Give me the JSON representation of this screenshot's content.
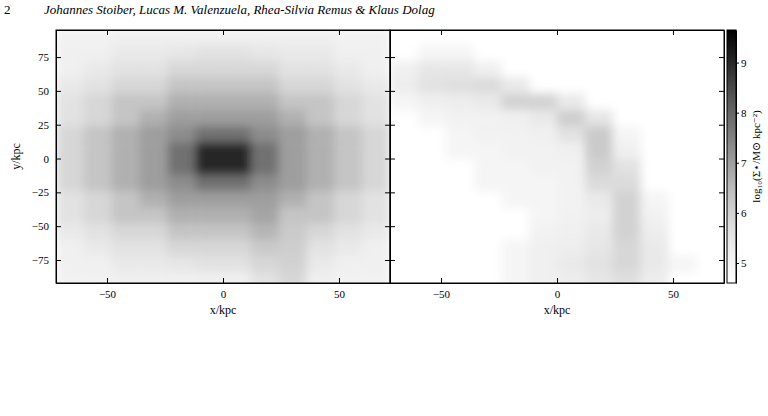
{
  "page_header": {
    "page": "2",
    "authors": "Johannes Stoiber, Lucas M. Valenzuela, Rhea-Silvia Remus & Klaus Dolag"
  },
  "chart_data": [
    {
      "type": "heatmap",
      "x": [
        -66,
        -54,
        -42,
        -30,
        -18,
        -6,
        6,
        18,
        30,
        42,
        54,
        66
      ],
      "y": [
        90,
        78,
        66,
        54,
        42,
        30,
        18,
        6,
        -6,
        -18,
        -30,
        -42,
        -54,
        -66,
        -78,
        -90
      ],
      "z": [
        [
          5.1,
          5.1,
          5.2,
          5.2,
          5.2,
          5.2,
          5.2,
          5.2,
          5.2,
          5.2,
          5.1,
          5.1
        ],
        [
          5.2,
          5.2,
          5.4,
          5.4,
          5.5,
          5.6,
          5.6,
          5.5,
          5.4,
          5.4,
          5.2,
          5.2
        ],
        [
          5.2,
          5.4,
          5.6,
          5.6,
          5.9,
          5.9,
          5.9,
          5.9,
          5.6,
          5.6,
          5.4,
          5.2
        ],
        [
          5.4,
          5.6,
          5.9,
          5.9,
          6.3,
          6.3,
          6.3,
          6.3,
          5.9,
          5.9,
          5.6,
          5.4
        ],
        [
          5.6,
          5.9,
          6.3,
          6.3,
          6.7,
          6.7,
          6.7,
          6.7,
          6.3,
          6.3,
          5.9,
          5.6
        ],
        [
          5.6,
          5.9,
          6.3,
          6.7,
          7.0,
          7.0,
          7.0,
          7.0,
          6.7,
          6.3,
          5.9,
          5.6
        ],
        [
          5.9,
          6.3,
          6.7,
          7.0,
          7.3,
          7.8,
          7.8,
          7.3,
          7.0,
          6.7,
          6.3,
          5.9
        ],
        [
          5.9,
          6.3,
          6.7,
          7.0,
          7.8,
          9.0,
          9.0,
          7.8,
          7.0,
          6.7,
          6.3,
          5.9
        ],
        [
          5.9,
          6.3,
          6.7,
          7.0,
          7.8,
          9.0,
          9.0,
          7.8,
          7.0,
          6.7,
          6.3,
          5.9
        ],
        [
          5.9,
          6.3,
          6.7,
          7.0,
          7.3,
          7.8,
          7.8,
          7.3,
          7.0,
          6.7,
          6.3,
          5.9
        ],
        [
          5.6,
          5.9,
          6.3,
          6.7,
          7.0,
          7.0,
          7.0,
          7.0,
          6.7,
          6.3,
          5.9,
          5.6
        ],
        [
          5.6,
          5.9,
          6.3,
          6.3,
          6.7,
          6.7,
          6.7,
          6.9,
          6.3,
          6.3,
          5.9,
          5.6
        ],
        [
          5.4,
          5.6,
          5.9,
          5.9,
          6.3,
          6.3,
          6.3,
          6.6,
          6.2,
          5.9,
          5.6,
          5.4
        ],
        [
          5.2,
          5.4,
          5.6,
          5.6,
          5.9,
          5.9,
          5.9,
          6.2,
          6.1,
          5.6,
          5.4,
          5.2
        ],
        [
          5.2,
          5.2,
          5.4,
          5.4,
          5.5,
          5.6,
          5.6,
          5.9,
          6.0,
          5.4,
          5.2,
          5.2
        ],
        [
          5.1,
          5.1,
          5.2,
          5.2,
          5.2,
          5.2,
          5.2,
          5.6,
          5.9,
          5.2,
          5.1,
          5.1
        ]
      ],
      "xlim": [
        -72,
        72
      ],
      "ylim": [
        -92,
        95
      ],
      "xticks": [
        {
          "value": -50,
          "label": "−50"
        },
        0,
        50
      ],
      "yticks": [
        {
          "value": -75,
          "label": "−75"
        },
        {
          "value": -50,
          "label": "−50"
        },
        {
          "value": -25,
          "label": "−25"
        },
        0,
        25,
        50,
        75
      ],
      "xlabel": "x/kpc",
      "ylabel": "y/kpc"
    },
    {
      "type": "heatmap",
      "x": [
        -66,
        -54,
        -42,
        -30,
        -18,
        -6,
        6,
        18,
        30,
        42,
        54,
        66
      ],
      "y": [
        90,
        78,
        66,
        54,
        42,
        30,
        18,
        6,
        -6,
        -18,
        -30,
        -42,
        -54,
        -66,
        -78,
        -90
      ],
      "z": [
        [
          null,
          null,
          null,
          null,
          null,
          null,
          null,
          null,
          null,
          null,
          null,
          null
        ],
        [
          null,
          5.0,
          5.0,
          null,
          null,
          null,
          null,
          null,
          null,
          null,
          null,
          null
        ],
        [
          5.2,
          5.5,
          5.5,
          5.2,
          null,
          null,
          null,
          null,
          null,
          null,
          null,
          null
        ],
        [
          5.3,
          5.6,
          5.7,
          5.8,
          5.4,
          null,
          null,
          null,
          null,
          null,
          null,
          null
        ],
        [
          5.0,
          5.2,
          5.3,
          5.4,
          6.0,
          6.0,
          5.4,
          null,
          null,
          null,
          null,
          null
        ],
        [
          null,
          5.0,
          5.1,
          5.1,
          5.2,
          5.4,
          6.1,
          5.5,
          null,
          null,
          null,
          null
        ],
        [
          null,
          null,
          5.0,
          5.1,
          5.1,
          5.2,
          5.6,
          6.2,
          5.0,
          null,
          null,
          null
        ],
        [
          null,
          null,
          5.0,
          5.0,
          5.1,
          5.1,
          5.2,
          6.2,
          5.2,
          null,
          null,
          null
        ],
        [
          null,
          null,
          null,
          5.0,
          5.0,
          5.1,
          5.1,
          6.0,
          5.6,
          null,
          null,
          null
        ],
        [
          null,
          null,
          null,
          5.0,
          5.0,
          5.0,
          5.1,
          5.8,
          5.8,
          null,
          null,
          null
        ],
        [
          null,
          null,
          null,
          null,
          5.0,
          5.0,
          5.1,
          5.4,
          6.0,
          5.0,
          null,
          null
        ],
        [
          null,
          null,
          null,
          null,
          null,
          5.0,
          5.1,
          5.3,
          6.0,
          5.1,
          null,
          null
        ],
        [
          null,
          null,
          null,
          null,
          null,
          5.1,
          5.2,
          5.4,
          6.0,
          5.3,
          null,
          null
        ],
        [
          null,
          null,
          null,
          null,
          5.0,
          5.2,
          5.3,
          5.5,
          5.9,
          5.4,
          null,
          null
        ],
        [
          null,
          null,
          null,
          null,
          5.0,
          5.2,
          5.4,
          5.6,
          5.9,
          5.4,
          5.0,
          null
        ],
        [
          null,
          null,
          null,
          null,
          5.0,
          5.2,
          5.3,
          5.5,
          5.7,
          5.3,
          null,
          null
        ]
      ],
      "xlim": [
        -72,
        72
      ],
      "ylim": [
        -92,
        95
      ],
      "xticks": [
        {
          "value": -50,
          "label": "−50"
        },
        0,
        50
      ],
      "yticks": [
        {
          "value": -75,
          "label": "−75"
        },
        {
          "value": -50,
          "label": "−50"
        },
        {
          "value": -25,
          "label": "−25"
        },
        0,
        25,
        50,
        75
      ],
      "xlabel": "x/kpc",
      "tick_labels": "x",
      "colorbar": {
        "range": [
          4.6,
          9.65
        ],
        "ticks": [
          5,
          6,
          7,
          8,
          9
        ],
        "label": "log₁₀(Σ⋆/M⊙ kpc⁻²)"
      }
    }
  ]
}
